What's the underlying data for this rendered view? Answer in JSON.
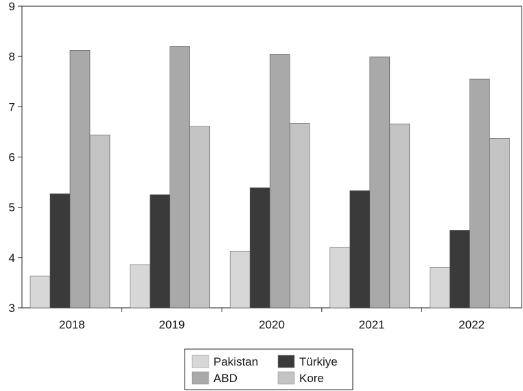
{
  "chart_data": {
    "type": "bar",
    "title": "",
    "xlabel": "",
    "ylabel": "",
    "categories": [
      "2018",
      "2019",
      "2020",
      "2021",
      "2022"
    ],
    "ylim": [
      3,
      9
    ],
    "yticks": [
      "3",
      "4",
      "5",
      "6",
      "7",
      "8",
      "9"
    ],
    "grid": false,
    "legend_position": "bottom-center",
    "series": [
      {
        "name": "Pakistan",
        "values": [
          3.63,
          3.86,
          4.13,
          4.2,
          3.8
        ],
        "color": "#d7d7d7"
      },
      {
        "name": "Türkiye",
        "values": [
          5.27,
          5.25,
          5.39,
          5.33,
          4.54
        ],
        "color": "#3a3a3a"
      },
      {
        "name": "ABD",
        "values": [
          8.12,
          8.2,
          8.04,
          7.99,
          7.55
        ],
        "color": "#a9a9a9"
      },
      {
        "name": "Kore",
        "values": [
          6.44,
          6.61,
          6.67,
          6.66,
          6.37
        ],
        "color": "#c3c3c3"
      }
    ]
  }
}
